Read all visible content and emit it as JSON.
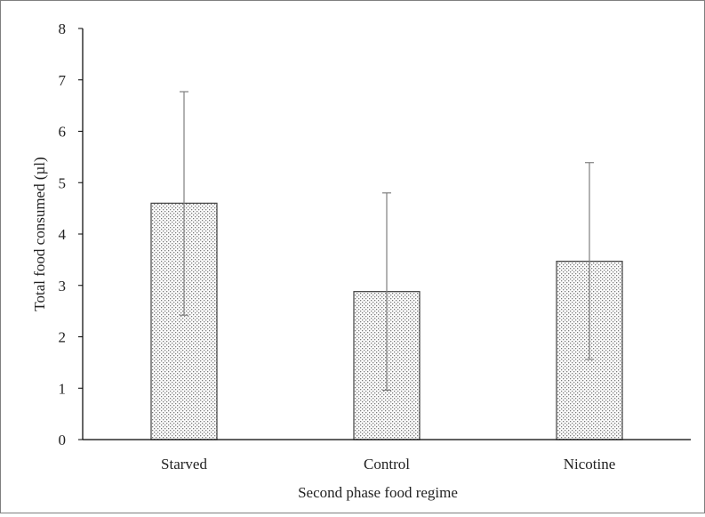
{
  "chart_data": {
    "type": "bar",
    "categories": [
      "Starved",
      "Control",
      "Nicotine"
    ],
    "values": [
      4.6,
      2.88,
      3.47
    ],
    "error_upper": [
      6.77,
      4.8,
      5.39
    ],
    "error_lower": [
      2.42,
      0.96,
      1.56
    ],
    "xlabel": "Second phase food regime",
    "ylabel": "Total food consumed (µl)",
    "ylim": [
      0,
      8
    ],
    "yticks": [
      "0",
      "1",
      "2",
      "3",
      "4",
      "5",
      "6",
      "7",
      "8"
    ],
    "grid": false,
    "legend": "none",
    "bar_fill": "dotted-gray",
    "colors": {
      "bar_edge": "#404040",
      "bar_dot": "#7a7a7a",
      "axis": "#000000",
      "error_bar": "#7f7f7f"
    }
  }
}
